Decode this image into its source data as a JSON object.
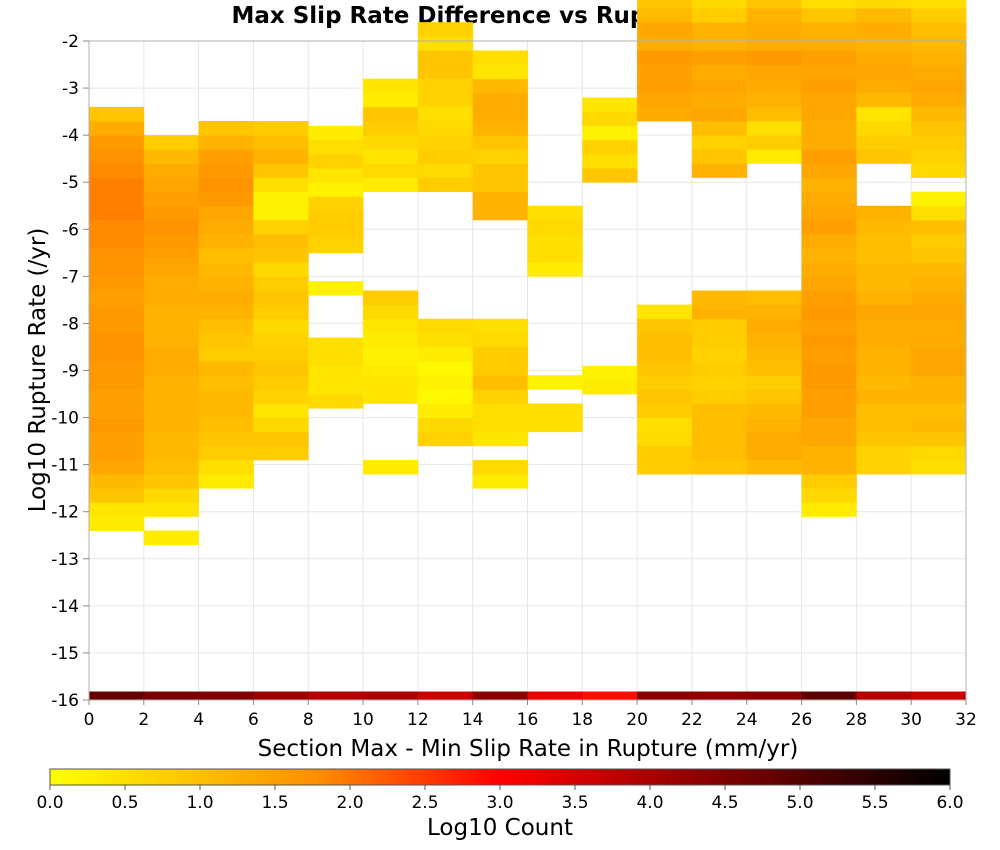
{
  "chart_data": {
    "type": "heatmap",
    "title": "Max Slip Rate Difference vs Rupture Rate",
    "xlabel": "Section Max - Min Slip Rate in Rupture (mm/yr)",
    "ylabel": "Log10 Rupture Rate (/yr)",
    "xlim": [
      0,
      32
    ],
    "ylim": [
      -16,
      -2
    ],
    "x_ticks": [
      "0",
      "2",
      "4",
      "6",
      "8",
      "10",
      "12",
      "14",
      "16",
      "18",
      "20",
      "22",
      "24",
      "26",
      "28",
      "30",
      "32"
    ],
    "y_ticks": [
      "-2",
      "-3",
      "-4",
      "-5",
      "-6",
      "-7",
      "-8",
      "-9",
      "-10",
      "-11",
      "-12",
      "-13",
      "-14",
      "-15",
      "-16"
    ],
    "grid": true,
    "colorbar": {
      "label": "Log10 Count",
      "range": [
        0,
        6
      ],
      "ticks": [
        "0.0",
        "0.5",
        "1.0",
        "1.5",
        "2.0",
        "2.5",
        "3.0",
        "3.5",
        "4.0",
        "4.5",
        "5.0",
        "5.5",
        "6.0"
      ],
      "colors": [
        "#ffff00",
        "#ff8c00",
        "#ff0000",
        "#000000"
      ]
    },
    "bin_width_x": 2,
    "bin_height_y": 0.3,
    "y_bin_start": -16,
    "x_bin_starts": [
      0,
      2,
      4,
      6,
      8,
      10,
      12,
      14,
      16,
      18,
      20,
      22,
      24,
      26,
      28,
      30
    ],
    "columns": [
      {
        "y_start": -12.4,
        "values": [
          0.3,
          0.4,
          0.9,
          1.1,
          1.4,
          1.5,
          1.5,
          1.6,
          1.5,
          1.5,
          1.6,
          1.6,
          1.7,
          1.7,
          1.6,
          1.6,
          1.5,
          1.6,
          1.7,
          1.7,
          1.8,
          1.8,
          1.9,
          1.9,
          1.9,
          1.8,
          1.7,
          1.6,
          1.3,
          0.9
        ]
      },
      {
        "y_start": -12.7,
        "values": [
          0.3,
          0,
          0.4,
          0.6,
          0.9,
          1.0,
          1.1,
          1.1,
          1.2,
          1.2,
          1.2,
          1.2,
          1.3,
          1.3,
          1.2,
          1.2,
          1.2,
          1.3,
          1.3,
          1.4,
          1.5,
          1.6,
          1.7,
          1.6,
          1.5,
          1.4,
          1.3,
          1.1,
          0.8
        ]
      },
      {
        "y_start": -11.5,
        "values": [
          0.3,
          0.5,
          0.8,
          0.9,
          1.0,
          1.1,
          1.1,
          1.0,
          1.1,
          0.8,
          0.9,
          1.0,
          1.2,
          1.3,
          1.2,
          1.1,
          1.0,
          1.2,
          1.3,
          1.4,
          1.6,
          1.7,
          1.6,
          1.5,
          1.2,
          0.9
        ]
      },
      {
        "y_start": -10.9,
        "values": [
          0.8,
          0.9,
          0.6,
          0.4,
          0.7,
          0.8,
          0.9,
          0.8,
          0.7,
          0.6,
          0.8,
          0.9,
          0.8,
          0.6,
          0.9,
          1.0,
          0.7,
          0.2,
          0.2,
          0.5,
          0.9,
          1.2,
          1.0,
          0.8
        ]
      },
      {
        "y_start": -9.8,
        "values": [
          0.6,
          0.4,
          0.4,
          0.5,
          0.5,
          0,
          0,
          0,
          0.2,
          0,
          0,
          0.7,
          0.8,
          0.8,
          0.7,
          0.2,
          0.4,
          0.7,
          0.5,
          0.3
        ]
      },
      {
        "y_start": -11.2,
        "values": [
          0.3,
          0,
          0,
          0,
          0,
          0.4,
          0.4,
          0.3,
          0.2,
          0.3,
          0.4,
          0.6,
          0.8,
          0,
          0,
          0,
          0,
          0,
          0,
          0,
          0.3,
          0.6,
          0.4,
          0.6,
          0.8,
          0.9,
          0.3,
          0.4
        ]
      },
      {
        "y_start": -10.6,
        "values": [
          0.7,
          0.6,
          0.3,
          0.1,
          0.2,
          0.1,
          0.3,
          0.5,
          0.6,
          0,
          0,
          0,
          0,
          0,
          0,
          0,
          0,
          0,
          0.8,
          0.6,
          0.8,
          0.7,
          0.6,
          0.5,
          0.7,
          0.7,
          0.9,
          0.9,
          0.5,
          0.7
        ]
      },
      {
        "y_start": -11.5,
        "values": [
          0.3,
          0.6,
          0,
          0.4,
          0.5,
          0.5,
          0.7,
          1.0,
          0.8,
          0.8,
          0.6,
          0.5,
          0,
          0,
          0,
          0,
          0,
          0,
          0,
          1.2,
          1.2,
          0.9,
          0.9,
          0.7,
          0.9,
          1.2,
          1.3,
          1.3,
          1.1,
          0.4,
          0.5
        ]
      },
      {
        "y_start": -10.3,
        "values": [
          0.5,
          0.5,
          0,
          0.2,
          0,
          0,
          0,
          0,
          0,
          0,
          0,
          0.3,
          0.5,
          0.5,
          0.6,
          0.5
        ]
      },
      {
        "y_start": -9.5,
        "values": [
          0.3,
          0.2,
          0,
          0,
          0,
          0,
          0,
          0,
          0,
          0,
          0,
          0,
          0,
          0,
          0,
          0.9,
          0.5,
          0.7,
          0.2,
          0.6,
          0.4
        ]
      },
      {
        "y_start": -11.2,
        "values": [
          0.8,
          0.8,
          0.6,
          0.5,
          0.8,
          0.9,
          0.8,
          0.9,
          1.0,
          1.0,
          0.9,
          0.4,
          0,
          0,
          0,
          0,
          0,
          0,
          0,
          0,
          0,
          0,
          0,
          0,
          0,
          1.3,
          1.4,
          1.5,
          1.5,
          1.6,
          1.3,
          1.4,
          1.1,
          0.9,
          0.8,
          1.3,
          1.2
        ]
      },
      {
        "y_start": -11.2,
        "values": [
          0.9,
          1.0,
          1.0,
          1.0,
          1.0,
          0.8,
          0.7,
          0.8,
          0.7,
          0.8,
          0.8,
          1.2,
          1.1,
          0,
          0,
          0,
          0,
          0,
          0,
          0,
          0,
          1.2,
          0.9,
          0.7,
          1.0,
          1.4,
          1.3,
          1.4,
          1.3,
          1.5,
          1.2,
          1.2,
          0.8,
          0.6,
          0.7,
          0.9,
          1.2
        ]
      },
      {
        "y_start": -11.2,
        "values": [
          1.1,
          1.3,
          1.3,
          1.2,
          1.1,
          0.9,
          0.8,
          1.0,
          1.1,
          1.2,
          1.3,
          1.2,
          1.0,
          0,
          0,
          0,
          0,
          0,
          0,
          0,
          0,
          0,
          0.3,
          0.8,
          0.5,
          1.0,
          1.2,
          1.3,
          1.4,
          1.6,
          1.3,
          1.3,
          1.2,
          0.9,
          0.6,
          0.7,
          0.2
        ]
      },
      {
        "y_start": -12.1,
        "values": [
          0.3,
          0.6,
          0.8,
          1.2,
          1.2,
          1.4,
          1.4,
          1.5,
          1.5,
          1.6,
          1.6,
          1.5,
          1.6,
          1.5,
          1.6,
          1.5,
          1.4,
          1.3,
          1.2,
          1.3,
          1.5,
          1.4,
          1.3,
          1.2,
          1.4,
          1.5,
          1.3,
          1.3,
          1.4,
          1.4,
          1.5,
          1.4,
          1.5,
          1.3,
          1.2,
          0.9,
          0.5,
          0.4
        ]
      },
      {
        "y_start": -11.2,
        "values": [
          0.7,
          0.7,
          0.9,
          1.0,
          1.0,
          1.2,
          1.1,
          1.2,
          1.2,
          1.3,
          1.3,
          1.4,
          1.2,
          1.1,
          1.1,
          1.0,
          1.0,
          1.1,
          1.2,
          0,
          0,
          0,
          0.9,
          0.8,
          0.6,
          0.4,
          1.1,
          1.3,
          1.4,
          1.3,
          1.2,
          1.3,
          1.1,
          0.6,
          0.5,
          0.4,
          0.3
        ]
      },
      {
        "y_start": -11.2,
        "values": [
          0.5,
          0.6,
          0.9,
          1.1,
          1.0,
          1.2,
          1.2,
          1.4,
          1.4,
          1.3,
          1.3,
          1.4,
          1.3,
          1.2,
          1.1,
          0.9,
          0.8,
          1.0,
          0.5,
          0.2,
          0,
          0.6,
          0.7,
          0.8,
          0.9,
          1.1,
          1.3,
          1.4,
          1.3,
          1.2,
          1.1,
          1.0,
          0.8,
          0.5,
          0.4,
          0.5,
          0.6
        ]
      }
    ],
    "floor_row_y": -16,
    "floor_row_values": [
      4.8,
      4.6,
      4.5,
      4.2,
      3.9,
      4.0,
      3.6,
      4.4,
      3.2,
      2.9,
      4.4,
      4.3,
      4.4,
      4.9,
      3.9,
      3.6
    ]
  }
}
